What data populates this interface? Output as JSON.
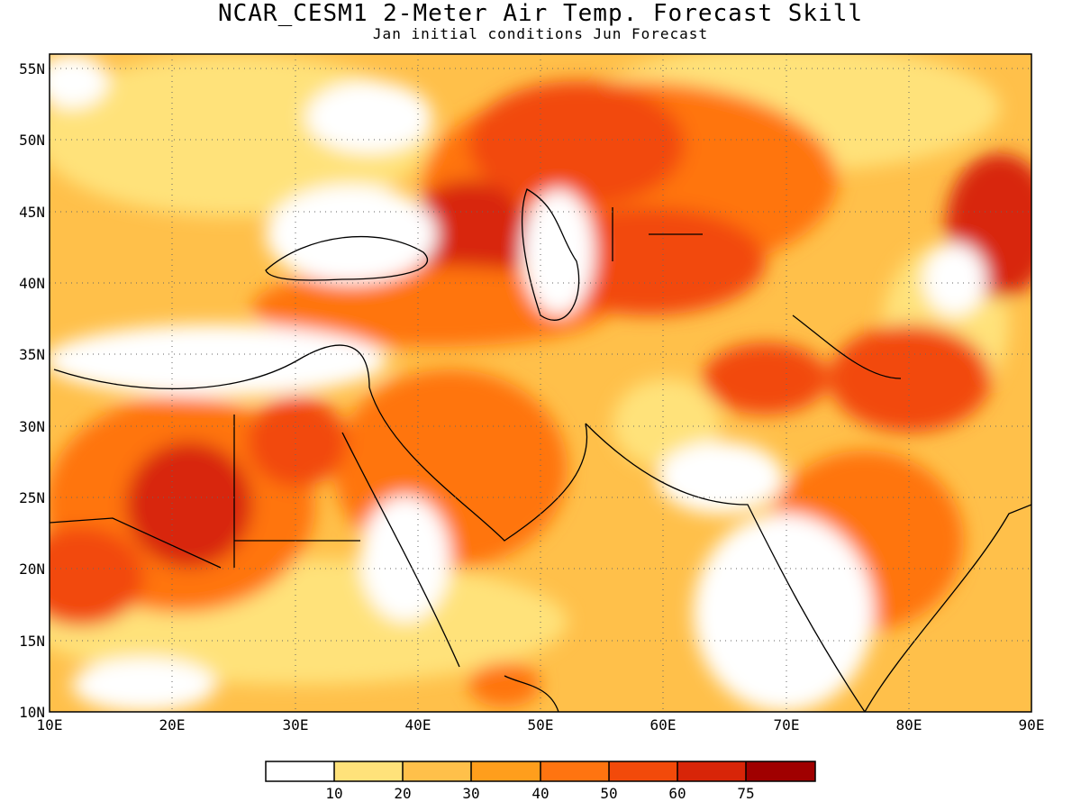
{
  "title": "NCAR_CESM1 2-Meter Air Temp. Forecast Skill",
  "subtitle": "Jan initial conditions  Jun Forecast",
  "map": {
    "lon_range": [
      10,
      90
    ],
    "lat_range": [
      10,
      56
    ],
    "lon_ticks": [
      "10E",
      "20E",
      "30E",
      "40E",
      "50E",
      "60E",
      "70E",
      "80E",
      "90E"
    ],
    "lat_ticks": [
      "10N",
      "15N",
      "20N",
      "25N",
      "30N",
      "35N",
      "40N",
      "45N",
      "50N",
      "55N"
    ],
    "grid": "dotted"
  },
  "colorbar": {
    "labels": [
      "10",
      "20",
      "30",
      "40",
      "50",
      "60",
      "75"
    ],
    "colors": [
      "#ffffff",
      "#ffe27a",
      "#ffc04a",
      "#ff9e1c",
      "#ff7410",
      "#f24a0a",
      "#d82508",
      "#a00000"
    ]
  },
  "chart_data": {
    "type": "heatmap",
    "title": "NCAR_CESM1 2-Meter Air Temp. Forecast Skill",
    "subtitle": "Jan initial conditions  Jun Forecast",
    "x_range": [
      10,
      90
    ],
    "y_range": [
      10,
      56
    ],
    "levels": [
      10,
      20,
      30,
      40,
      50,
      60,
      75
    ],
    "regions": [
      {
        "lon": 50,
        "lat": 48,
        "level": 50
      },
      {
        "lon": 62,
        "lat": 46,
        "level": 50
      },
      {
        "lon": 46,
        "lat": 43,
        "level": 60
      },
      {
        "lon": 60,
        "lat": 42,
        "level": 50
      },
      {
        "lon": 42,
        "lat": 40,
        "level": 50
      },
      {
        "lon": 67,
        "lat": 33,
        "level": 60
      },
      {
        "lon": 81,
        "lat": 32,
        "level": 60
      },
      {
        "lon": 88,
        "lat": 44,
        "level": 60
      },
      {
        "lon": 20,
        "lat": 24,
        "level": 60
      },
      {
        "lon": 13,
        "lat": 20,
        "level": 50
      },
      {
        "lon": 32,
        "lat": 29,
        "level": 60
      },
      {
        "lon": 44,
        "lat": 26,
        "level": 50
      },
      {
        "lon": 78,
        "lat": 23,
        "level": 50
      },
      {
        "lon": 26,
        "lat": 48,
        "level": 20
      },
      {
        "lon": 76,
        "lat": 54,
        "level": 20
      }
    ]
  }
}
